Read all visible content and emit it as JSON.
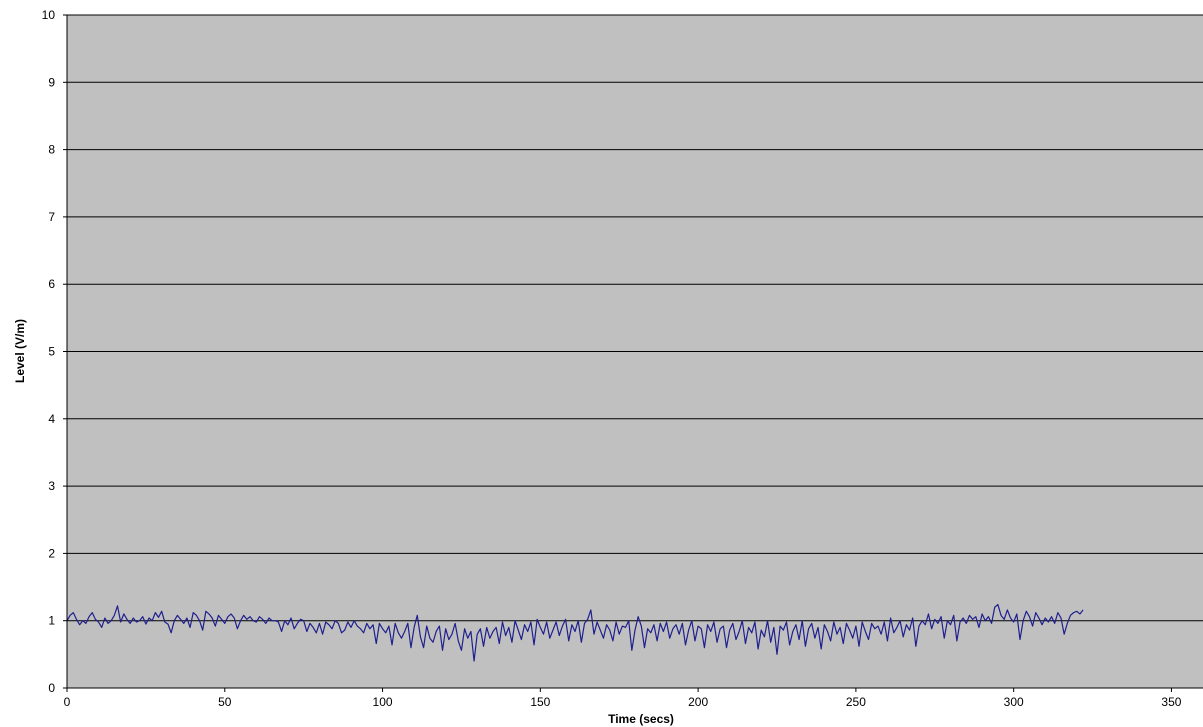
{
  "chart_data": {
    "type": "line",
    "title": "",
    "xlabel": "Time (secs)",
    "ylabel": "Level (V/m)",
    "xlim": [
      0,
      360
    ],
    "ylim": [
      0,
      10
    ],
    "x_ticks": [
      0,
      50,
      100,
      150,
      200,
      250,
      300,
      350
    ],
    "y_ticks": [
      0,
      1,
      2,
      3,
      4,
      5,
      6,
      7,
      8,
      9,
      10
    ],
    "grid": "horizontal",
    "colors": {
      "plot_background": "#c0c0c0",
      "gridline": "#000000",
      "series": "#1f1f8f"
    },
    "series": [
      {
        "x_start": 0,
        "x_step": 1,
        "values": [
          1.0,
          1.08,
          1.12,
          1.02,
          0.94,
          1.0,
          0.96,
          1.06,
          1.12,
          1.02,
          0.98,
          0.9,
          1.04,
          0.96,
          1.0,
          1.08,
          1.22,
          0.98,
          1.1,
          1.02,
          0.96,
          1.04,
          0.98,
          1.0,
          1.06,
          0.95,
          1.04,
          1.0,
          1.12,
          1.05,
          1.14,
          0.98,
          0.95,
          0.82,
          1.0,
          1.08,
          1.02,
          0.96,
          1.04,
          0.9,
          1.12,
          1.08,
          1.0,
          0.86,
          1.14,
          1.1,
          1.04,
          0.92,
          1.08,
          1.02,
          0.96,
          1.06,
          1.1,
          1.04,
          0.88,
          1.0,
          1.08,
          1.02,
          1.06,
          1.0,
          0.98,
          1.06,
          1.02,
          0.96,
          1.04,
          1.0,
          1.0,
          0.98,
          0.84,
          1.0,
          0.94,
          1.04,
          0.88,
          0.96,
          1.02,
          1.0,
          0.84,
          0.96,
          0.9,
          0.82,
          0.96,
          0.8,
          0.98,
          0.94,
          0.88,
          1.0,
          0.96,
          0.82,
          0.86,
          0.98,
          0.9,
          1.0,
          0.92,
          0.88,
          0.82,
          0.96,
          0.88,
          0.94,
          0.66,
          0.96,
          0.88,
          0.82,
          0.92,
          0.64,
          0.96,
          0.82,
          0.74,
          0.84,
          0.96,
          0.6,
          0.9,
          1.08,
          0.76,
          0.6,
          0.92,
          0.74,
          0.68,
          0.84,
          0.92,
          0.56,
          0.88,
          0.72,
          0.8,
          0.96,
          0.7,
          0.56,
          0.88,
          0.74,
          0.84,
          0.4,
          0.8,
          0.88,
          0.62,
          0.9,
          0.74,
          0.84,
          0.9,
          0.66,
          0.98,
          0.78,
          0.9,
          0.68,
          1.0,
          0.86,
          0.72,
          0.94,
          0.84,
          0.98,
          0.64,
          1.02,
          0.9,
          0.8,
          0.98,
          0.74,
          0.86,
          0.98,
          0.78,
          0.92,
          1.02,
          0.7,
          0.94,
          0.84,
          1.0,
          0.68,
          0.96,
          1.02,
          1.16,
          0.8,
          0.98,
          0.86,
          0.74,
          0.94,
          0.86,
          0.7,
          0.98,
          0.8,
          0.92,
          0.9,
          1.0,
          0.56,
          0.86,
          1.06,
          0.92,
          0.6,
          0.88,
          0.82,
          0.94,
          0.7,
          0.96,
          0.84,
          0.98,
          0.74,
          0.88,
          0.94,
          0.8,
          0.96,
          0.64,
          0.86,
          1.0,
          0.7,
          0.92,
          0.88,
          0.6,
          0.94,
          0.84,
          0.98,
          0.68,
          0.88,
          0.92,
          0.6,
          0.86,
          0.96,
          0.72,
          0.84,
          1.0,
          0.66,
          0.9,
          0.82,
          0.98,
          0.58,
          0.86,
          0.76,
          1.0,
          0.68,
          0.9,
          0.5,
          0.92,
          0.86,
          0.98,
          0.64,
          0.84,
          0.94,
          0.72,
          1.0,
          0.62,
          0.88,
          0.96,
          0.74,
          0.9,
          0.58,
          0.94,
          0.84,
          0.7,
          0.98,
          0.8,
          0.9,
          0.66,
          0.96,
          0.86,
          0.74,
          0.92,
          0.62,
          0.98,
          0.84,
          0.72,
          0.96,
          0.88,
          0.92,
          0.8,
          0.98,
          0.7,
          1.04,
          0.82,
          0.9,
          1.0,
          0.76,
          0.94,
          0.86,
          1.04,
          0.62,
          0.92,
          1.0,
          0.94,
          1.1,
          0.88,
          1.02,
          0.96,
          1.06,
          0.74,
          1.0,
          0.94,
          1.08,
          0.7,
          0.98,
          1.04,
          0.96,
          1.08,
          1.02,
          1.06,
          0.9,
          1.1,
          1.0,
          1.06,
          0.96,
          1.2,
          1.24,
          1.08,
          1.02,
          1.16,
          1.04,
          0.98,
          1.1,
          0.72,
          1.0,
          1.14,
          1.06,
          0.92,
          1.12,
          1.04,
          0.94,
          1.04,
          0.98,
          1.06,
          0.96,
          1.12,
          1.04,
          0.8,
          0.96,
          1.08,
          1.12,
          1.14,
          1.1,
          1.16
        ]
      }
    ]
  }
}
